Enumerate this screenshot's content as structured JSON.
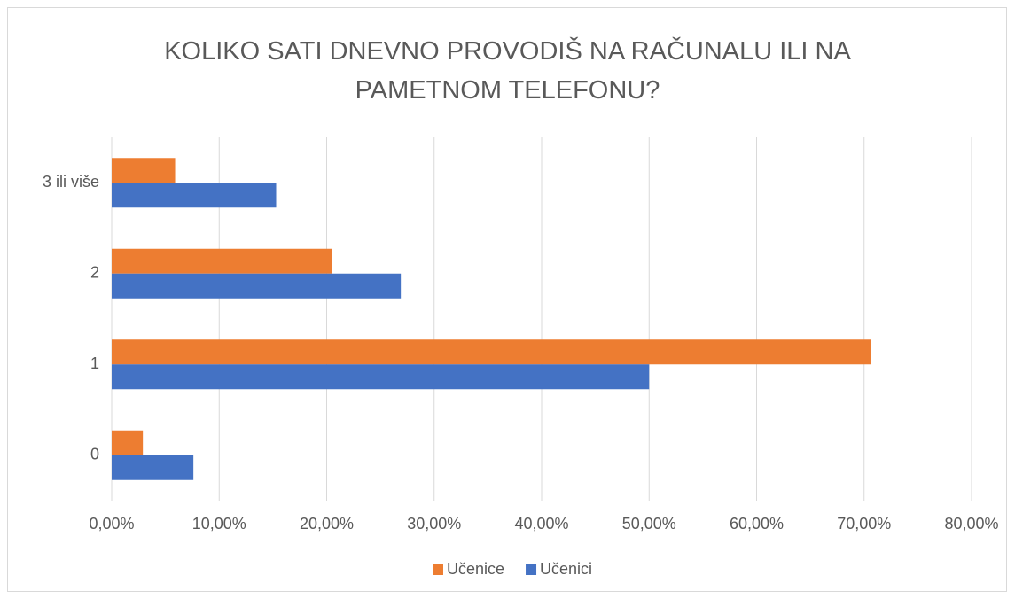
{
  "chart_data": {
    "type": "hbar",
    "title": "KOLIKO SATI DNEVNO PROVODIŠ NA RAČUNALU ILI NA PAMETNOM TELEFONU?",
    "categories": [
      "0",
      "1",
      "2",
      "3 ili više"
    ],
    "series": [
      {
        "name": "Učenice",
        "color": "#ed7d31",
        "values": [
          2.9,
          70.6,
          20.5,
          5.9
        ]
      },
      {
        "name": "Učenici",
        "color": "#4472c4",
        "values": [
          7.6,
          50.0,
          26.9,
          15.3
        ]
      }
    ],
    "xlim": [
      0,
      80
    ],
    "xticks": [
      {
        "value": 0,
        "label": "0,00%"
      },
      {
        "value": 10,
        "label": "10,00%"
      },
      {
        "value": 20,
        "label": "20,00%"
      },
      {
        "value": 30,
        "label": "30,00%"
      },
      {
        "value": 40,
        "label": "40,00%"
      },
      {
        "value": 50,
        "label": "50,00%"
      },
      {
        "value": 60,
        "label": "60,00%"
      },
      {
        "value": 70,
        "label": "70,00%"
      },
      {
        "value": 80,
        "label": "80,00%"
      }
    ],
    "grid": true,
    "legend": "bottom"
  }
}
